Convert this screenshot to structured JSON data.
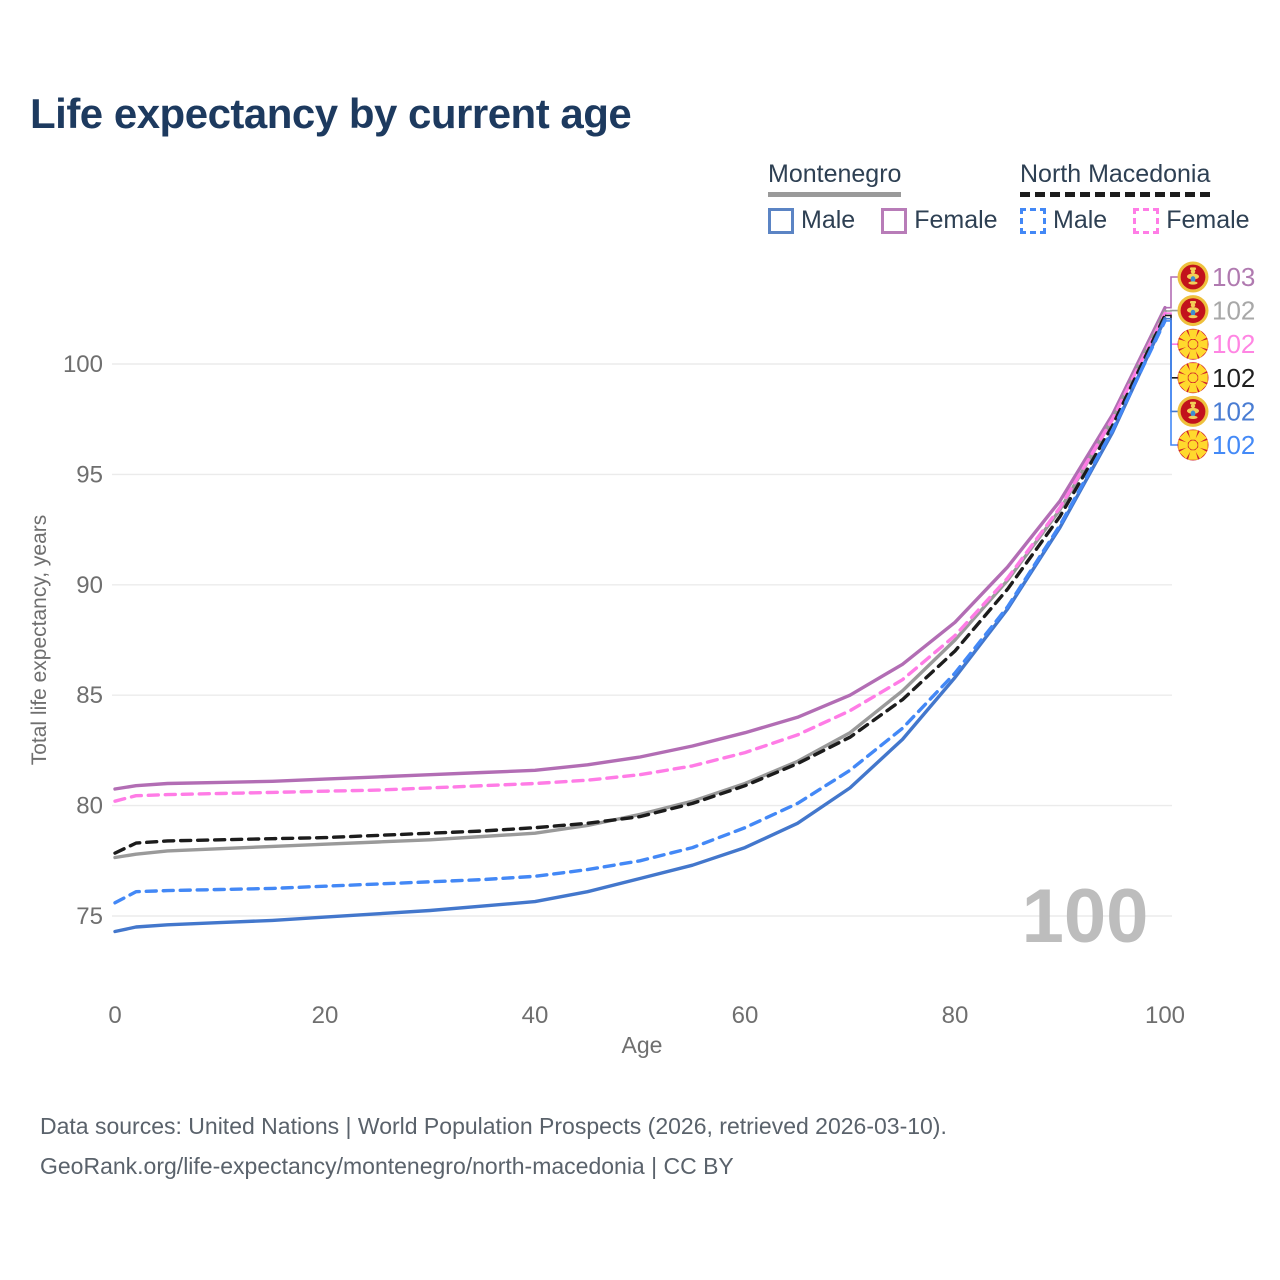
{
  "title": "Life expectancy by current age",
  "legend": {
    "groups": [
      {
        "label": "Montenegro",
        "line_style": "solid",
        "line_color": "#9a9a9a",
        "items": [
          {
            "label": "Male",
            "color": "#4377cc",
            "dashed": false
          },
          {
            "label": "Female",
            "color": "#b26db4",
            "dashed": false
          }
        ]
      },
      {
        "label": "North Macedonia",
        "line_style": "dashed",
        "line_color": "#1c1c1c",
        "items": [
          {
            "label": "Male",
            "color": "#4388f6",
            "dashed": true
          },
          {
            "label": "Female",
            "color": "#ff7ce6",
            "dashed": true
          }
        ]
      }
    ]
  },
  "watermark": "100",
  "footer": {
    "line1": "Data sources: United Nations | World Population Prospects (2026, retrieved 2026-03-10).",
    "line2": "GeoRank.org/life-expectancy/montenegro/north-macedonia | CC BY"
  },
  "chart_data": {
    "type": "line",
    "title": "Life expectancy by current age",
    "xlabel": "Age",
    "ylabel": "Total life expectancy, years",
    "xlim": [
      0,
      100
    ],
    "ylim": [
      73,
      104
    ],
    "xticks": [
      0,
      20,
      40,
      60,
      80,
      100
    ],
    "yticks": [
      75,
      80,
      85,
      90,
      95,
      100
    ],
    "grid": true,
    "legend_position": "top-right",
    "x": [
      0,
      2,
      5,
      10,
      15,
      20,
      25,
      30,
      35,
      40,
      45,
      50,
      55,
      60,
      65,
      70,
      75,
      80,
      85,
      90,
      95,
      100
    ],
    "series": [
      {
        "name": "Montenegro Female",
        "country": "Montenegro",
        "sex": "Female",
        "color": "#b26db4",
        "label_color": "#b07ab0",
        "dashed": false,
        "flag": "montenegro",
        "end_label": "103",
        "values": [
          80.75,
          80.9,
          81.0,
          81.05,
          81.1,
          81.2,
          81.3,
          81.4,
          81.5,
          81.6,
          81.85,
          82.2,
          82.7,
          83.3,
          84.0,
          85.0,
          86.4,
          88.3,
          90.8,
          93.8,
          97.7,
          102.55
        ]
      },
      {
        "name": "Montenegro Total",
        "country": "Montenegro",
        "sex": "Both",
        "color": "#9a9a9a",
        "label_color": "#a8a8a8",
        "dashed": false,
        "flag": "montenegro",
        "end_label": "102",
        "values": [
          77.65,
          77.8,
          77.95,
          78.05,
          78.15,
          78.25,
          78.35,
          78.45,
          78.6,
          78.75,
          79.1,
          79.6,
          80.2,
          81.0,
          82.0,
          83.3,
          85.2,
          87.5,
          90.2,
          93.4,
          97.5,
          102.4
        ]
      },
      {
        "name": "North Macedonia Female",
        "country": "North Macedonia",
        "sex": "Female",
        "color": "#ff7ce6",
        "label_color": "#ff85e3",
        "dashed": true,
        "flag": "north-macedonia",
        "end_label": "102",
        "values": [
          80.2,
          80.45,
          80.5,
          80.55,
          80.6,
          80.65,
          80.7,
          80.8,
          80.9,
          81.0,
          81.15,
          81.4,
          81.8,
          82.4,
          83.2,
          84.3,
          85.7,
          87.7,
          90.3,
          93.5,
          97.5,
          102.3
        ]
      },
      {
        "name": "North Macedonia Total",
        "country": "North Macedonia",
        "sex": "Both",
        "color": "#1c1c1c",
        "label_color": "#1f1f1f",
        "dashed": true,
        "flag": "north-macedonia",
        "end_label": "102",
        "values": [
          77.85,
          78.3,
          78.4,
          78.45,
          78.5,
          78.55,
          78.65,
          78.75,
          78.85,
          79.0,
          79.2,
          79.5,
          80.1,
          80.9,
          81.9,
          83.1,
          84.8,
          87.0,
          89.8,
          93.1,
          97.2,
          102.2
        ]
      },
      {
        "name": "Montenegro Male",
        "country": "Montenegro",
        "sex": "Male",
        "color": "#4377cc",
        "label_color": "#4a7dd3",
        "dashed": false,
        "flag": "montenegro",
        "end_label": "102",
        "values": [
          74.3,
          74.5,
          74.6,
          74.7,
          74.8,
          74.95,
          75.1,
          75.25,
          75.45,
          75.65,
          76.1,
          76.7,
          77.3,
          78.1,
          79.2,
          80.8,
          83.0,
          85.8,
          88.9,
          92.6,
          96.9,
          102.05
        ]
      },
      {
        "name": "North Macedonia Male",
        "country": "North Macedonia",
        "sex": "Male",
        "color": "#4388f6",
        "label_color": "#448af7",
        "dashed": true,
        "flag": "north-macedonia",
        "end_label": "102",
        "values": [
          75.6,
          76.1,
          76.15,
          76.2,
          76.25,
          76.35,
          76.45,
          76.55,
          76.65,
          76.8,
          77.1,
          77.5,
          78.1,
          79.0,
          80.1,
          81.6,
          83.5,
          86.0,
          89.0,
          92.7,
          97.0,
          101.95
        ]
      }
    ]
  }
}
